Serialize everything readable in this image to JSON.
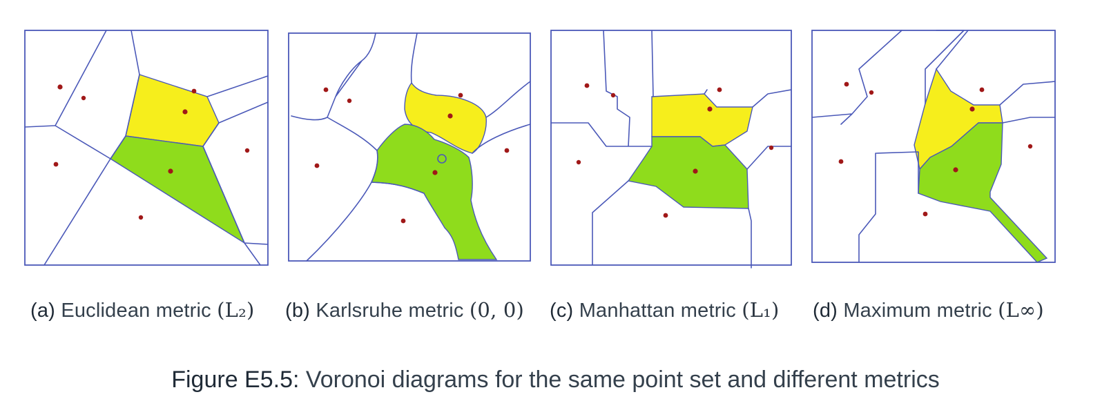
{
  "panels": [
    {
      "label": "(a)",
      "text": "Euclidean metric",
      "math": "(L₂)"
    },
    {
      "label": "(b)",
      "text": "Karlsruhe metric",
      "math": "(0, 0)"
    },
    {
      "label": "(c)",
      "text": "Manhattan metric",
      "math": "(L₁)"
    },
    {
      "label": "(d)",
      "text": "Maximum metric",
      "math": "(L∞)"
    }
  ],
  "figure": {
    "label": "Figure E5.5:",
    "caption": "Voronoi diagrams for the same point set and different metrics"
  },
  "colors": {
    "edges": "#4a58b8",
    "highlight_yellow": "#f6ee1c",
    "highlight_green": "#8fdc1c",
    "sites": "#a01818"
  }
}
